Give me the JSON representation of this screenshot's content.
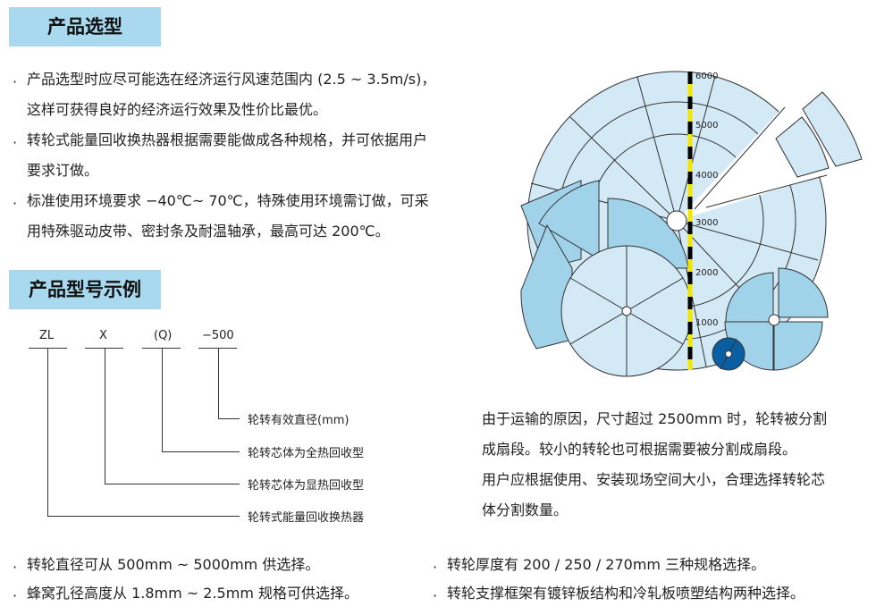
{
  "section1": {
    "title": "产品选型",
    "bullets": [
      [
        "产品选型时应尽可能选在经济运行风速范围内 (2.5 ~ 3.5m/s)，",
        "这样可获得良好的经济运行效果及性价比最优。"
      ],
      [
        "转轮式能量回收换热器根据需要能做成各种规格，并可依据用户",
        "要求订做。"
      ],
      [
        "标准使用环境要求 −40℃~ 70℃，特殊使用环境需订做，可采",
        "用特殊驱动皮带、密封条及耐温轴承，最高可达 200℃。"
      ]
    ]
  },
  "section2": {
    "title": "产品型号示例",
    "codes": [
      "ZL",
      "X",
      "(Q)",
      "−500"
    ],
    "labels": [
      "轮转有效直径(mm)",
      "轮转芯体为全热回收型",
      "轮转芯体为显热回收型",
      "轮转式能量回收换热器"
    ]
  },
  "figure": {
    "scale_labels": [
      "6000",
      "5000",
      "4000",
      "3000",
      "2000",
      "1000"
    ],
    "colors": {
      "light": "#d3e9f5",
      "mid": "#a0d3ea",
      "dark": "#0a5fa3",
      "scale": "#f5e600"
    }
  },
  "figure_caption": [
    "由于运输的原因，尺寸超过 2500mm 时，轮转被分割",
    "成扇段。较小的转轮也可根据需要被分割成扇段。",
    "用户应根据使用、安装现场空间大小，合理选择转轮芯",
    "体分割数量。"
  ],
  "footer": {
    "left": [
      "转轮直径可从 500mm ~ 5000mm 供选择。",
      "蜂窝孔径高度从 1.8mm ~ 2.5mm 规格可供选择。"
    ],
    "right": [
      "转轮厚度有 200 / 250 / 270mm 三种规格选择。",
      "转轮支撑框架有镀锌板结构和冷轧板喷塑结构两种选择。"
    ]
  }
}
